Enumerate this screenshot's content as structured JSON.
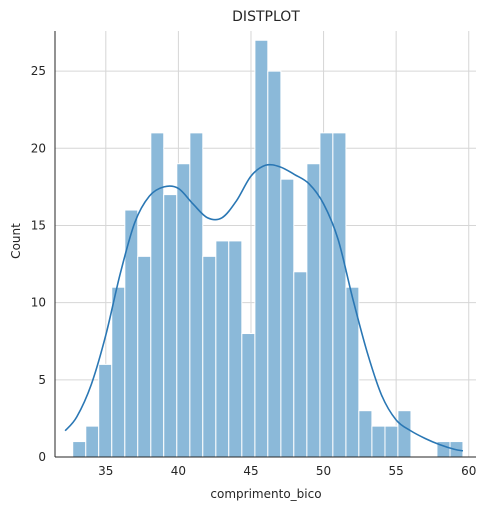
{
  "chart_data": {
    "type": "bar",
    "title": "DISTPLOT",
    "xlabel": "comprimento_bico",
    "ylabel": "Count",
    "xlim": [
      31.5,
      60.5
    ],
    "ylim": [
      0,
      27.6
    ],
    "xticks": [
      35,
      40,
      45,
      50,
      55,
      60
    ],
    "yticks": [
      0,
      5,
      10,
      15,
      20,
      25
    ],
    "grid": true,
    "bar_color": "#8bb9d9",
    "kde_color": "#2a77b4",
    "bins": [
      {
        "x0": 32.72,
        "x1": 33.62,
        "count": 1
      },
      {
        "x0": 33.62,
        "x1": 34.51,
        "count": 2
      },
      {
        "x0": 34.51,
        "x1": 35.41,
        "count": 6
      },
      {
        "x0": 35.41,
        "x1": 36.31,
        "count": 11
      },
      {
        "x0": 36.31,
        "x1": 37.2,
        "count": 16
      },
      {
        "x0": 37.2,
        "x1": 38.1,
        "count": 13
      },
      {
        "x0": 38.1,
        "x1": 38.99,
        "count": 21
      },
      {
        "x0": 38.99,
        "x1": 39.89,
        "count": 17
      },
      {
        "x0": 39.89,
        "x1": 40.79,
        "count": 19
      },
      {
        "x0": 40.79,
        "x1": 41.68,
        "count": 21
      },
      {
        "x0": 41.68,
        "x1": 42.58,
        "count": 13
      },
      {
        "x0": 42.58,
        "x1": 43.47,
        "count": 14
      },
      {
        "x0": 43.47,
        "x1": 44.37,
        "count": 14
      },
      {
        "x0": 44.37,
        "x1": 45.27,
        "count": 8
      },
      {
        "x0": 45.27,
        "x1": 46.16,
        "count": 27
      },
      {
        "x0": 46.16,
        "x1": 47.06,
        "count": 25
      },
      {
        "x0": 47.06,
        "x1": 47.95,
        "count": 18
      },
      {
        "x0": 47.95,
        "x1": 48.85,
        "count": 12
      },
      {
        "x0": 48.85,
        "x1": 49.75,
        "count": 19
      },
      {
        "x0": 49.75,
        "x1": 50.64,
        "count": 21
      },
      {
        "x0": 50.64,
        "x1": 51.54,
        "count": 21
      },
      {
        "x0": 51.54,
        "x1": 52.43,
        "count": 11
      },
      {
        "x0": 52.43,
        "x1": 53.33,
        "count": 3
      },
      {
        "x0": 53.33,
        "x1": 54.23,
        "count": 2
      },
      {
        "x0": 54.23,
        "x1": 55.12,
        "count": 2
      },
      {
        "x0": 55.12,
        "x1": 56.02,
        "count": 3
      },
      {
        "x0": 57.81,
        "x1": 58.71,
        "count": 1
      },
      {
        "x0": 58.71,
        "x1": 59.6,
        "count": 1
      }
    ],
    "kde": [
      [
        32.2,
        1.7
      ],
      [
        33.0,
        2.6
      ],
      [
        34.0,
        4.7
      ],
      [
        35.0,
        7.9
      ],
      [
        36.0,
        11.9
      ],
      [
        37.0,
        15.2
      ],
      [
        38.0,
        16.9
      ],
      [
        39.0,
        17.5
      ],
      [
        40.0,
        17.4
      ],
      [
        41.0,
        16.4
      ],
      [
        42.0,
        15.5
      ],
      [
        43.0,
        15.5
      ],
      [
        44.0,
        16.6
      ],
      [
        45.0,
        18.2
      ],
      [
        46.0,
        18.9
      ],
      [
        47.0,
        18.8
      ],
      [
        48.0,
        18.3
      ],
      [
        49.0,
        17.7
      ],
      [
        50.0,
        16.4
      ],
      [
        51.0,
        14.1
      ],
      [
        52.0,
        10.3
      ],
      [
        53.0,
        6.8
      ],
      [
        54.0,
        4.0
      ],
      [
        55.0,
        2.4
      ],
      [
        56.0,
        1.7
      ],
      [
        57.0,
        1.2
      ],
      [
        58.0,
        0.8
      ],
      [
        59.0,
        0.5
      ],
      [
        59.6,
        0.4
      ]
    ]
  }
}
